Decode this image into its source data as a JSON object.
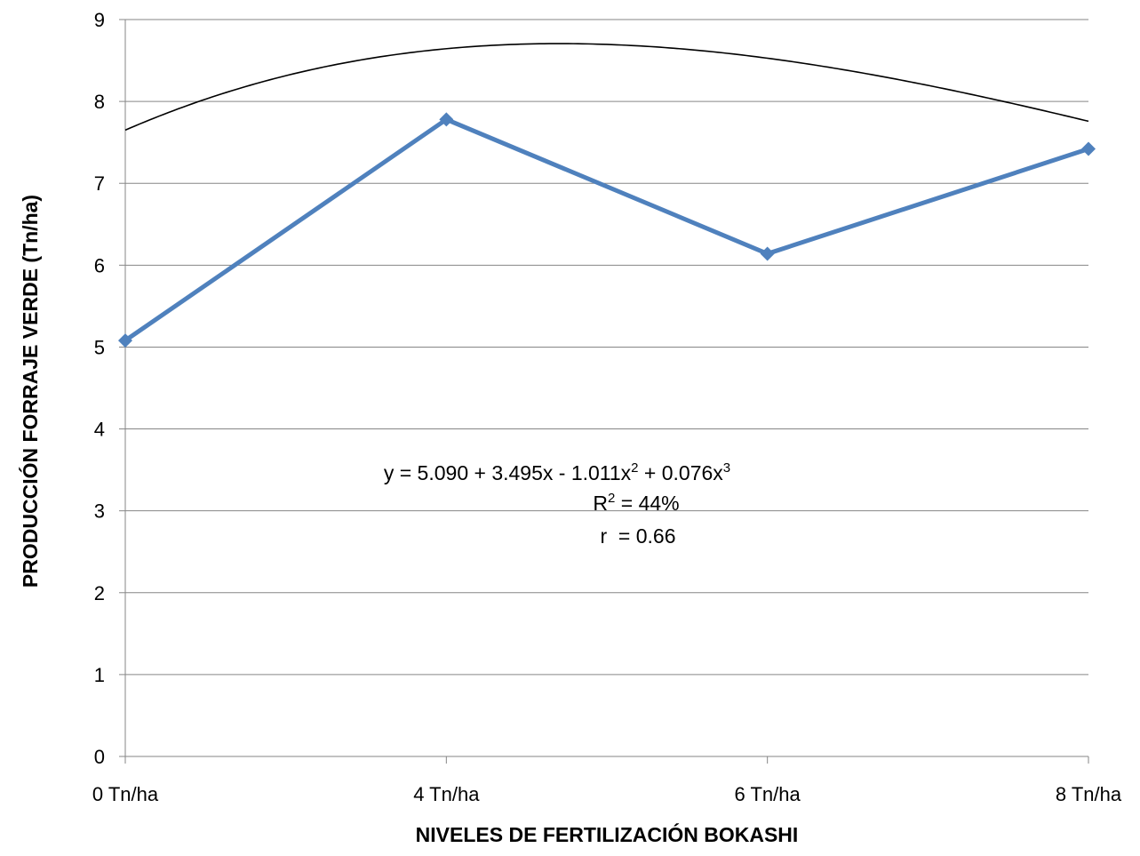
{
  "chart_data": {
    "type": "line",
    "categories": [
      "0 Tn/ha",
      "4 Tn/ha",
      "6 Tn/ha",
      "8 Tn/ha"
    ],
    "series": [
      {
        "values": [
          5.08,
          7.78,
          6.14,
          7.42
        ],
        "color": "#4F81BD",
        "marker": "diamond"
      }
    ],
    "trendline": {
      "type": "polynomial-3",
      "color": "#000000",
      "coefficients": [
        5.09,
        3.495,
        -1.011,
        0.076
      ]
    },
    "xlabel": "NIVELES DE FERTILIZACIÓN BOKASHI",
    "ylabel": "PRODUCCIÓN FORRAJE VERDE (Tn/ha)",
    "ylim": [
      0,
      9
    ],
    "yticks": [
      "0",
      "1",
      "2",
      "3",
      "4",
      "5",
      "6",
      "7",
      "8",
      "9"
    ],
    "grid": true,
    "annotation": {
      "equation": {
        "base": "y = 5.090 + 3.495x - 1.011x",
        "sup1": "2",
        "mid": " + 0.076x",
        "sup2": "3"
      },
      "r2": {
        "base": "R",
        "sup": "2",
        "rest": " = 44%"
      },
      "r": "r  = 0.66"
    }
  }
}
